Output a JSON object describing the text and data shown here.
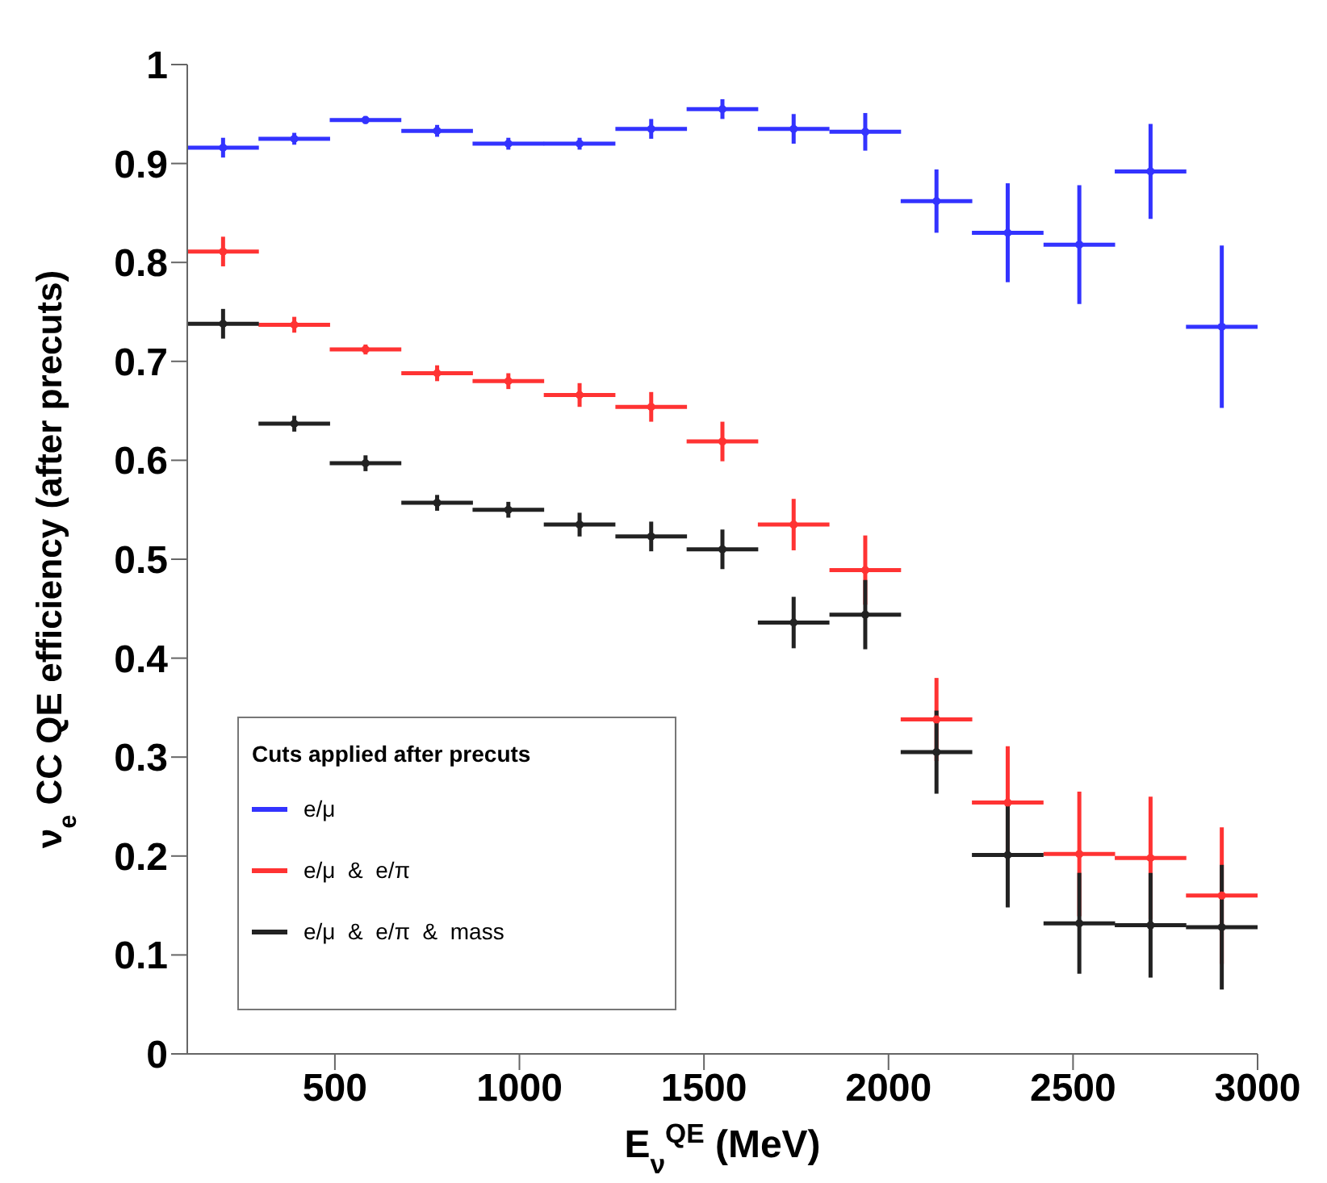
{
  "chart_data": {
    "type": "scatter",
    "xlabel": "E$_{ν}$$^{QE}$ (MeV)",
    "ylabel": "ν$_{e}$ CC QE efficiency (after precuts)",
    "legend_title": "Cuts applied after precuts",
    "x": [
      197,
      390,
      583,
      777,
      970,
      1163,
      1357,
      1550,
      1743,
      1937,
      2130,
      2323,
      2517,
      2710,
      2903
    ],
    "series": [
      {
        "name": "e/μ",
        "color": "#3333ff",
        "xerrors": [
          97,
          97,
          97,
          97,
          97,
          97,
          97,
          97,
          97,
          97,
          97,
          97,
          97,
          97,
          97
        ],
        "values": [
          0.916,
          0.925,
          0.944,
          0.933,
          0.92,
          0.92,
          0.935,
          0.955,
          0.935,
          0.932,
          0.862,
          0.83,
          0.818,
          0.892,
          0.735
        ],
        "errors": [
          0.01,
          0.006,
          0.004,
          0.006,
          0.006,
          0.006,
          0.01,
          0.01,
          0.015,
          0.019,
          0.032,
          0.05,
          0.06,
          0.048,
          0.082
        ]
      },
      {
        "name": "e/μ  &  e/π",
        "color": "#ff3333",
        "xerrors": [
          97,
          97,
          97,
          97,
          97,
          97,
          97,
          97,
          97,
          97,
          97,
          97,
          97,
          97,
          97
        ],
        "values": [
          0.811,
          0.737,
          0.712,
          0.688,
          0.68,
          0.666,
          0.654,
          0.619,
          0.535,
          0.489,
          0.338,
          0.254,
          0.202,
          0.198,
          0.16
        ],
        "errors": [
          0.015,
          0.008,
          0.005,
          0.008,
          0.008,
          0.012,
          0.015,
          0.02,
          0.026,
          0.035,
          0.042,
          0.057,
          0.063,
          0.062,
          0.069
        ]
      },
      {
        "name": "e/μ  &  e/π  &  mass",
        "color": "#222222",
        "xerrors": [
          97,
          97,
          97,
          97,
          97,
          97,
          97,
          97,
          97,
          97,
          97,
          97,
          97,
          97,
          97
        ],
        "values": [
          0.738,
          0.637,
          0.597,
          0.557,
          0.55,
          0.535,
          0.523,
          0.51,
          0.436,
          0.444,
          0.305,
          0.201,
          0.132,
          0.13,
          0.128
        ],
        "errors": [
          0.015,
          0.008,
          0.008,
          0.008,
          0.008,
          0.012,
          0.015,
          0.02,
          0.026,
          0.035,
          0.042,
          0.053,
          0.051,
          0.053,
          0.063
        ]
      }
    ],
    "xlim": [
      100,
      3000
    ],
    "xticks": [
      500,
      1000,
      1500,
      2000,
      2500,
      3000
    ],
    "ylim": [
      0,
      1
    ],
    "yticks": [
      0,
      0.1,
      0.2,
      0.3,
      0.4,
      0.5,
      0.6,
      0.7,
      0.8,
      0.9,
      1
    ],
    "grid": false,
    "legend": "bottom left"
  }
}
